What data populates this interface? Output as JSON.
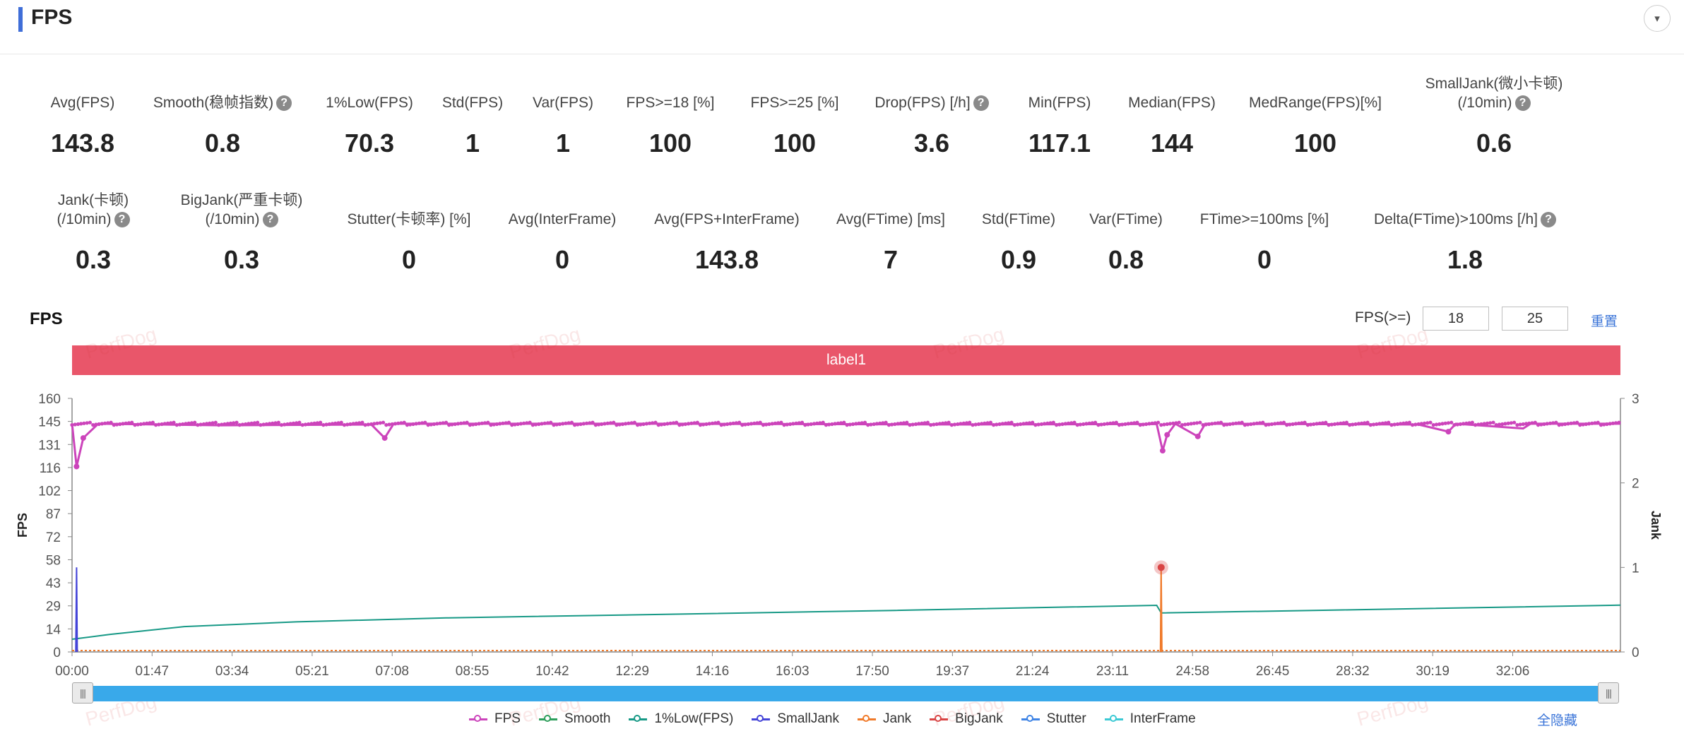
{
  "header": {
    "title": "FPS",
    "collapse_icon": "▾"
  },
  "metrics": [
    {
      "label": "Avg(FPS)",
      "value": "143.8",
      "help": false
    },
    {
      "label": "Smooth(稳帧指数)",
      "value": "0.8",
      "help": true
    },
    {
      "label": "1%Low(FPS)",
      "value": "70.3",
      "help": false
    },
    {
      "label": "Std(FPS)",
      "value": "1",
      "help": false
    },
    {
      "label": "Var(FPS)",
      "value": "1",
      "help": false
    },
    {
      "label": "FPS>=18 [%]",
      "value": "100",
      "help": false
    },
    {
      "label": "FPS>=25 [%]",
      "value": "100",
      "help": false
    },
    {
      "label": "Drop(FPS) [/h]",
      "value": "3.6",
      "help": true
    },
    {
      "label": "Min(FPS)",
      "value": "117.1",
      "help": false
    },
    {
      "label": "Median(FPS)",
      "value": "144",
      "help": false
    },
    {
      "label": "MedRange(FPS)[%]",
      "value": "100",
      "help": false
    },
    {
      "label": "SmallJank(微小卡顿)",
      "label2": "(/10min)",
      "value": "0.6",
      "help": true
    },
    {
      "label": "Jank(卡顿)",
      "label2": "(/10min)",
      "value": "0.3",
      "help": true
    },
    {
      "label": "BigJank(严重卡顿)",
      "label2": "(/10min)",
      "value": "0.3",
      "help": true
    },
    {
      "label": "Stutter(卡顿率) [%]",
      "value": "0",
      "help": false
    },
    {
      "label": "Avg(InterFrame)",
      "value": "0",
      "help": false
    },
    {
      "label": "Avg(FPS+InterFrame)",
      "value": "143.8",
      "help": false
    },
    {
      "label": "Avg(FTime) [ms]",
      "value": "7",
      "help": false
    },
    {
      "label": "Std(FTime)",
      "value": "0.9",
      "help": false
    },
    {
      "label": "Var(FTime)",
      "value": "0.8",
      "help": false
    },
    {
      "label": "FTime>=100ms [%]",
      "value": "0",
      "help": false
    },
    {
      "label": "Delta(FTime)>100ms [/h]",
      "value": "1.8",
      "help": true
    }
  ],
  "chart_panel": {
    "title": "FPS",
    "fps_ge_label": "FPS(>=)",
    "threshold1": "18",
    "threshold2": "25",
    "reset_label": "重置",
    "label_bar": "label1",
    "watermark": "PerfDog",
    "hide_all_label": "全隐藏",
    "slider_handle_icon": "|||"
  },
  "chart_data": {
    "type": "line",
    "ylabel_left": "FPS",
    "ylabel_right": "Jank",
    "y_ticks_left": [
      "0",
      "14",
      "29",
      "43",
      "58",
      "72",
      "87",
      "102",
      "116",
      "131",
      "145",
      "160"
    ],
    "y_ticks_right": [
      "0",
      "1",
      "2",
      "3"
    ],
    "ylim_left": [
      0,
      160
    ],
    "ylim_right": [
      0,
      3
    ],
    "x_ticks": [
      "00:00",
      "01:47",
      "03:34",
      "05:21",
      "07:08",
      "08:55",
      "10:42",
      "12:29",
      "14:16",
      "16:03",
      "17:50",
      "19:37",
      "21:24",
      "23:11",
      "24:58",
      "26:45",
      "28:32",
      "30:19",
      "32:06"
    ],
    "xlim_seconds": [
      0,
      2070
    ],
    "series": [
      {
        "name": "FPS",
        "color": "#cc44bb",
        "axis": "left",
        "baseline": 144,
        "points": [
          [
            0,
            144
          ],
          [
            6,
            117
          ],
          [
            15,
            135
          ],
          [
            35,
            144
          ],
          [
            200,
            143
          ],
          [
            400,
            143.5
          ],
          [
            418,
            135
          ],
          [
            430,
            144
          ],
          [
            800,
            144
          ],
          [
            1200,
            143.5
          ],
          [
            1450,
            143.8
          ],
          [
            1458,
            127
          ],
          [
            1464,
            137
          ],
          [
            1475,
            144
          ],
          [
            1505,
            136
          ],
          [
            1515,
            144
          ],
          [
            1800,
            143.5
          ],
          [
            1840,
            139
          ],
          [
            1850,
            144
          ],
          [
            1940,
            141
          ],
          [
            1950,
            144
          ],
          [
            2070,
            144
          ]
        ]
      },
      {
        "name": "Smooth",
        "color": "#2e9e5b",
        "axis": "left",
        "points": []
      },
      {
        "name": "1%Low(FPS)",
        "color": "#179986",
        "axis": "left",
        "points": [
          [
            0,
            8
          ],
          [
            50,
            11
          ],
          [
            150,
            16
          ],
          [
            300,
            19
          ],
          [
            500,
            21.5
          ],
          [
            800,
            23.8
          ],
          [
            1100,
            26.2
          ],
          [
            1450,
            29.4
          ],
          [
            1456,
            24.6
          ],
          [
            1700,
            26.5
          ],
          [
            2070,
            29.5
          ]
        ]
      },
      {
        "name": "SmallJank",
        "color": "#4444d8",
        "axis": "right",
        "points": [
          [
            5,
            0
          ],
          [
            6,
            1.0
          ],
          [
            7,
            0
          ]
        ]
      },
      {
        "name": "Jank",
        "color": "#f07a2a",
        "axis": "right",
        "points": [
          [
            1455,
            0
          ],
          [
            1456,
            1.0
          ],
          [
            1457,
            0
          ]
        ]
      },
      {
        "name": "BigJank",
        "color": "#d94444",
        "axis": "right",
        "points": [
          [
            1456,
            1.0
          ]
        ]
      },
      {
        "name": "Stutter",
        "color": "#3f84e5",
        "axis": "left",
        "points": []
      },
      {
        "name": "InterFrame",
        "color": "#3cc9d4",
        "axis": "left",
        "points": []
      }
    ]
  }
}
